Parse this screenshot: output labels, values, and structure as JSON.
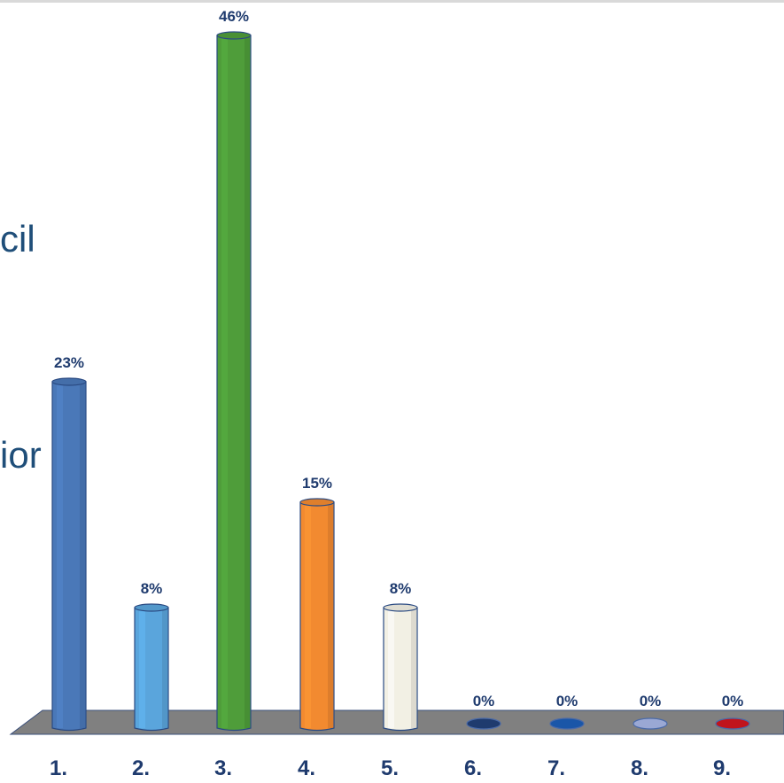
{
  "background_text": [
    "cil",
    "ior"
  ],
  "chart_data": {
    "type": "bar",
    "categories": [
      "1.",
      "2.",
      "3.",
      "4.",
      "5.",
      "6.",
      "7.",
      "8.",
      "9."
    ],
    "values": [
      23,
      8,
      46,
      15,
      8,
      0,
      0,
      0,
      0
    ],
    "value_labels": [
      "23%",
      "8%",
      "46%",
      "15%",
      "8%",
      "0%",
      "0%",
      "0%",
      "0%"
    ],
    "colors": [
      "#4a78b8",
      "#5aa5dc",
      "#4f9d3a",
      "#f28a30",
      "#f2f0e4",
      "#1f3b6e",
      "#1a56a8",
      "#9aa8d4",
      "#c0141c"
    ],
    "ylim": [
      0,
      46
    ],
    "title": "",
    "xlabel": "",
    "ylabel": "",
    "grid": false,
    "legend": "none"
  }
}
